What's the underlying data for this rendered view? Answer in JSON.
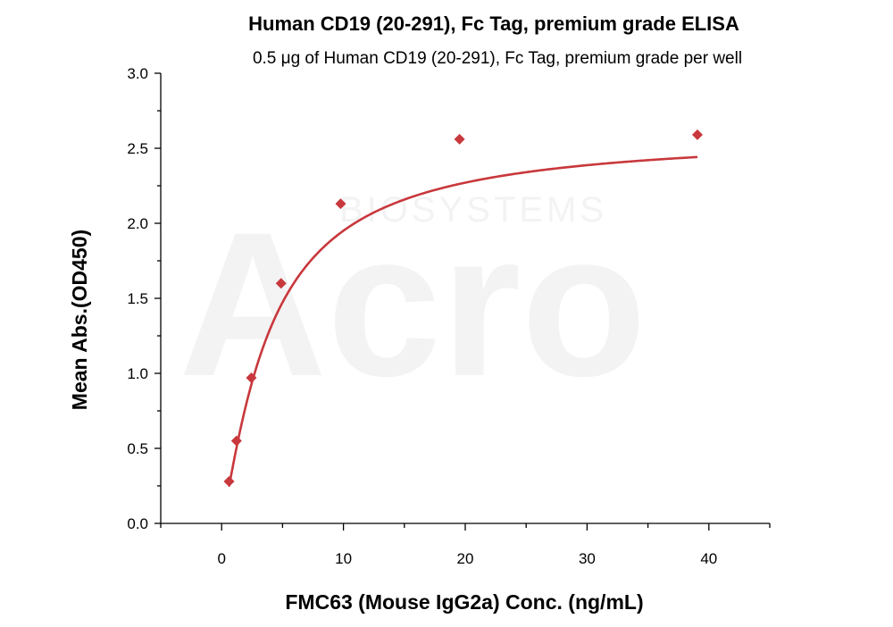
{
  "chart_data": {
    "type": "scatter",
    "title": "Human CD19 (20-291), Fc Tag, premium grade ELISA",
    "subtitle": "0.5 μg of Human CD19 (20-291), Fc Tag, premium grade per well",
    "xlabel": "FMC63 (Mouse IgG2a) Conc. (ng/mL)",
    "ylabel": "Mean Abs.(OD450)",
    "xlim": [
      -5,
      45
    ],
    "ylim": [
      0,
      3.0
    ],
    "x_ticks": [
      "0",
      "10",
      "20",
      "30",
      "40"
    ],
    "y_ticks": [
      "0.0",
      "0.5",
      "1.0",
      "1.5",
      "2.0",
      "2.5",
      "3.0"
    ],
    "grid": false,
    "color": "#c8383c",
    "series": [
      {
        "points": [
          {
            "x": 0.61,
            "y": 0.28
          },
          {
            "x": 1.22,
            "y": 0.55
          },
          {
            "x": 2.44,
            "y": 0.97
          },
          {
            "x": 4.88,
            "y": 1.6
          },
          {
            "x": 9.77,
            "y": 2.13
          },
          {
            "x": 19.53,
            "y": 2.56
          },
          {
            "x": 39.06,
            "y": 2.59
          }
        ],
        "fit": {
          "top": 2.6,
          "bottom": 0.0,
          "ec50": 4.0,
          "hill": 1.2
        }
      }
    ]
  },
  "watermark": {
    "brand": "Acro",
    "tagline": "BIOSYSTEMS"
  }
}
